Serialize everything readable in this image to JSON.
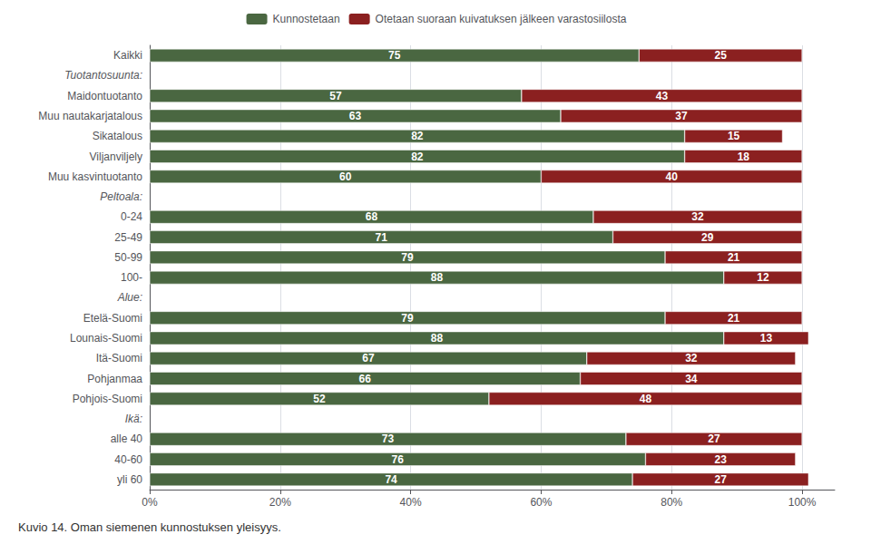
{
  "chart_data": {
    "type": "bar",
    "orientation": "horizontal",
    "stacked": true,
    "data_labels": true,
    "categories": [
      "Kaikki",
      "Tuotantosuunta:",
      "Maidontuotanto",
      "Muu nautakarjatalous",
      "Sikatalous",
      "Viljanviljely",
      "Muu kasvintuotanto",
      "Peltoala:",
      "0-24",
      "25-49",
      "50-99",
      "100-",
      "Alue:",
      "Etelä-Suomi",
      "Lounais-Suomi",
      "Itä-Suomi",
      "Pohjanmaa",
      "Pohjois-Suomi",
      "Ikä:",
      "alle 40",
      "40-60",
      "yli 60"
    ],
    "series": [
      {
        "name": "Kunnostetaan",
        "color": "#4a6741",
        "values": [
          75,
          null,
          57,
          63,
          82,
          82,
          60,
          null,
          68,
          71,
          79,
          88,
          null,
          79,
          88,
          67,
          66,
          52,
          null,
          73,
          76,
          74
        ]
      },
      {
        "name": "Otetaan suoraan kuivatuksen jälkeen varastosiilosta",
        "color": "#8b2020",
        "values": [
          25,
          null,
          43,
          37,
          15,
          18,
          40,
          null,
          32,
          29,
          21,
          12,
          null,
          21,
          13,
          32,
          34,
          48,
          null,
          27,
          23,
          27
        ]
      }
    ],
    "xlim": [
      0,
      105
    ],
    "xticks": [
      {
        "value": 0,
        "label": "0%"
      },
      {
        "value": 20,
        "label": "20%"
      },
      {
        "value": 40,
        "label": "40%"
      },
      {
        "value": 60,
        "label": "60%"
      },
      {
        "value": 80,
        "label": "80%"
      },
      {
        "value": 100,
        "label": "100%"
      }
    ],
    "grid": true,
    "legend": "top",
    "annotations": [
      "Kuvio 14. Oman siemenen kunnostuksen yleisyys."
    ]
  }
}
